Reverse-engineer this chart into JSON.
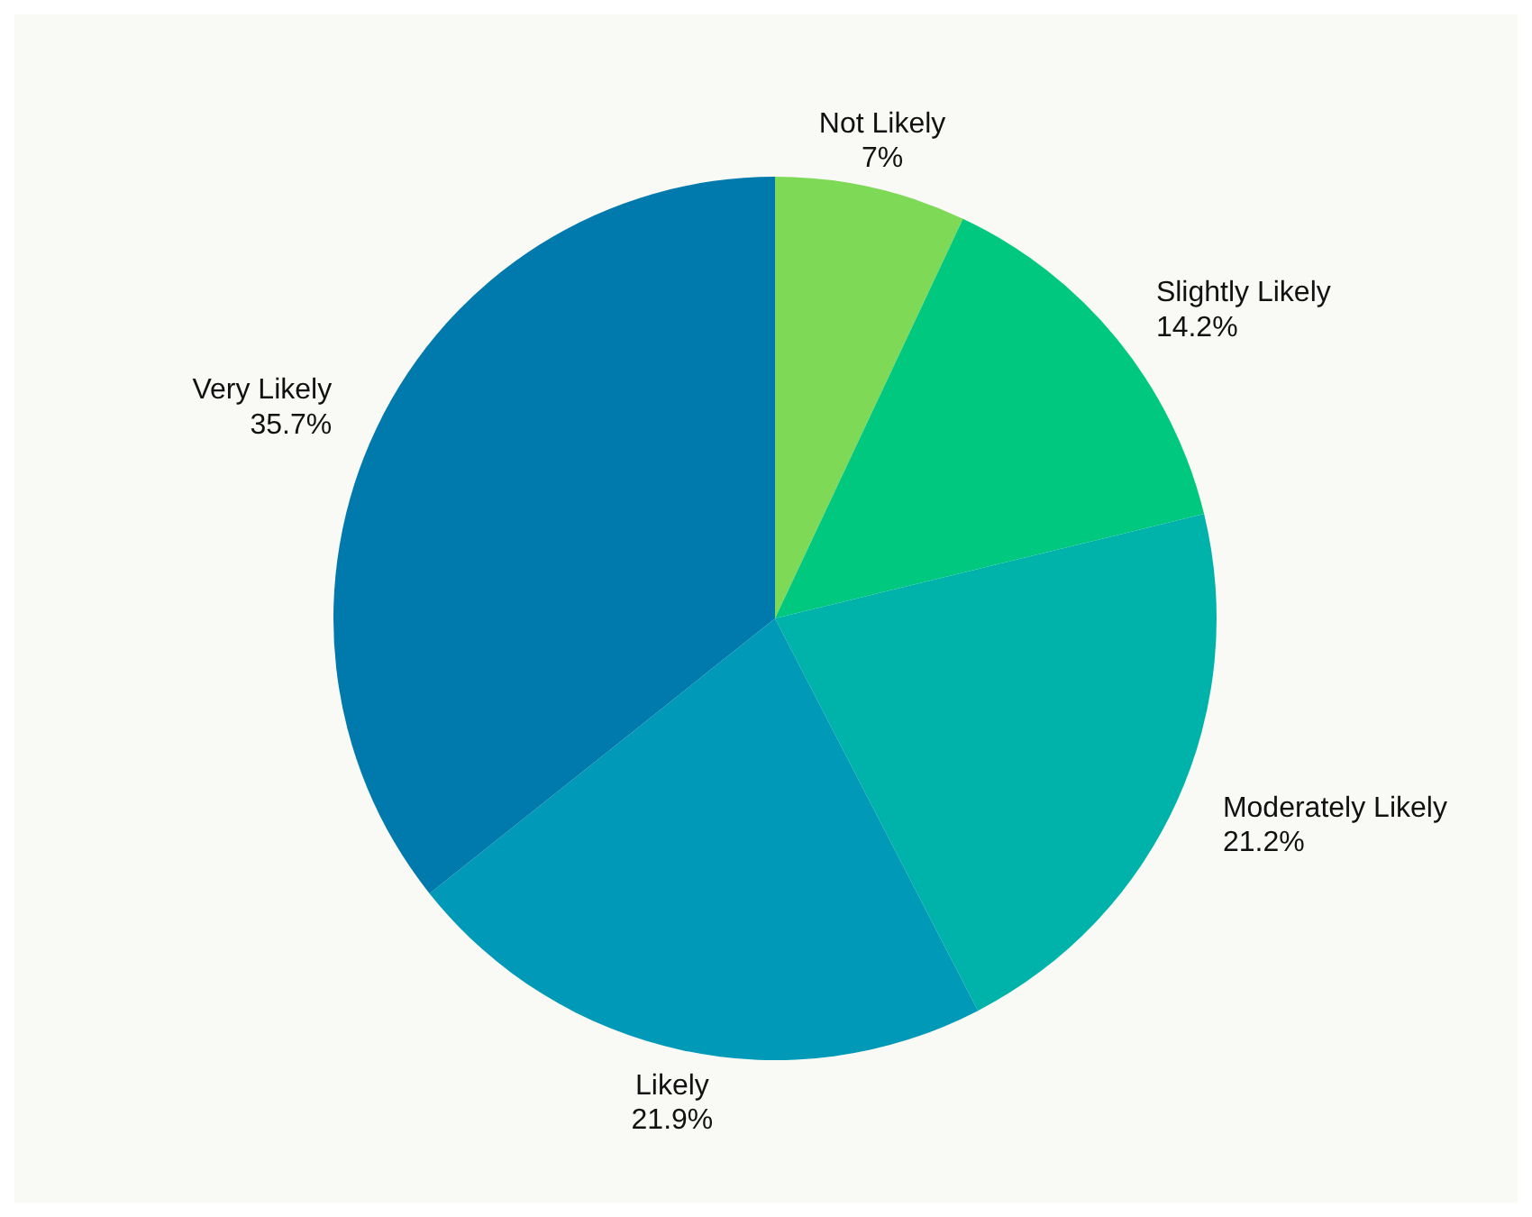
{
  "chart_data": {
    "type": "pie",
    "categories": [
      "Not Likely",
      "Slightly Likely",
      "Moderately Likely",
      "Likely",
      "Very Likely"
    ],
    "values": [
      7,
      14.2,
      21.2,
      21.9,
      35.7
    ],
    "value_labels": [
      "7%",
      "14.2%",
      "21.2%",
      "21.9%",
      "35.7%"
    ],
    "colors": [
      "#7ed957",
      "#00c97f",
      "#00b3aa",
      "#0099b8",
      "#0079ad"
    ],
    "legend": false
  }
}
